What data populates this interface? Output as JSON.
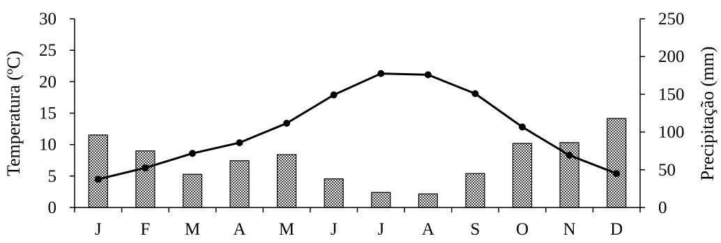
{
  "chart_data": {
    "type": "bar+line",
    "categories": [
      "J",
      "F",
      "M",
      "A",
      "M",
      "J",
      "J",
      "A",
      "S",
      "O",
      "N",
      "D"
    ],
    "series": [
      {
        "type": "bar",
        "axis": "right",
        "values": [
          96,
          75,
          44,
          62,
          70,
          38,
          20,
          18,
          45,
          85,
          86,
          118
        ]
      },
      {
        "type": "line",
        "axis": "left",
        "values": [
          4.5,
          6.3,
          8.6,
          10.3,
          13.4,
          17.9,
          21.3,
          21.1,
          18.1,
          12.8,
          8.3,
          5.4
        ]
      }
    ],
    "left_axis": {
      "label": "Temperatura (ºC)",
      "ylim": [
        0,
        30
      ],
      "ticks": [
        "0",
        "5",
        "10",
        "15",
        "20",
        "25",
        "30"
      ]
    },
    "right_axis": {
      "label": "Precipitação (mm)",
      "ylim": [
        0,
        250
      ],
      "ticks": [
        "0",
        "50",
        "100",
        "150",
        "200",
        "250"
      ]
    },
    "grid": false,
    "legend": "none"
  }
}
